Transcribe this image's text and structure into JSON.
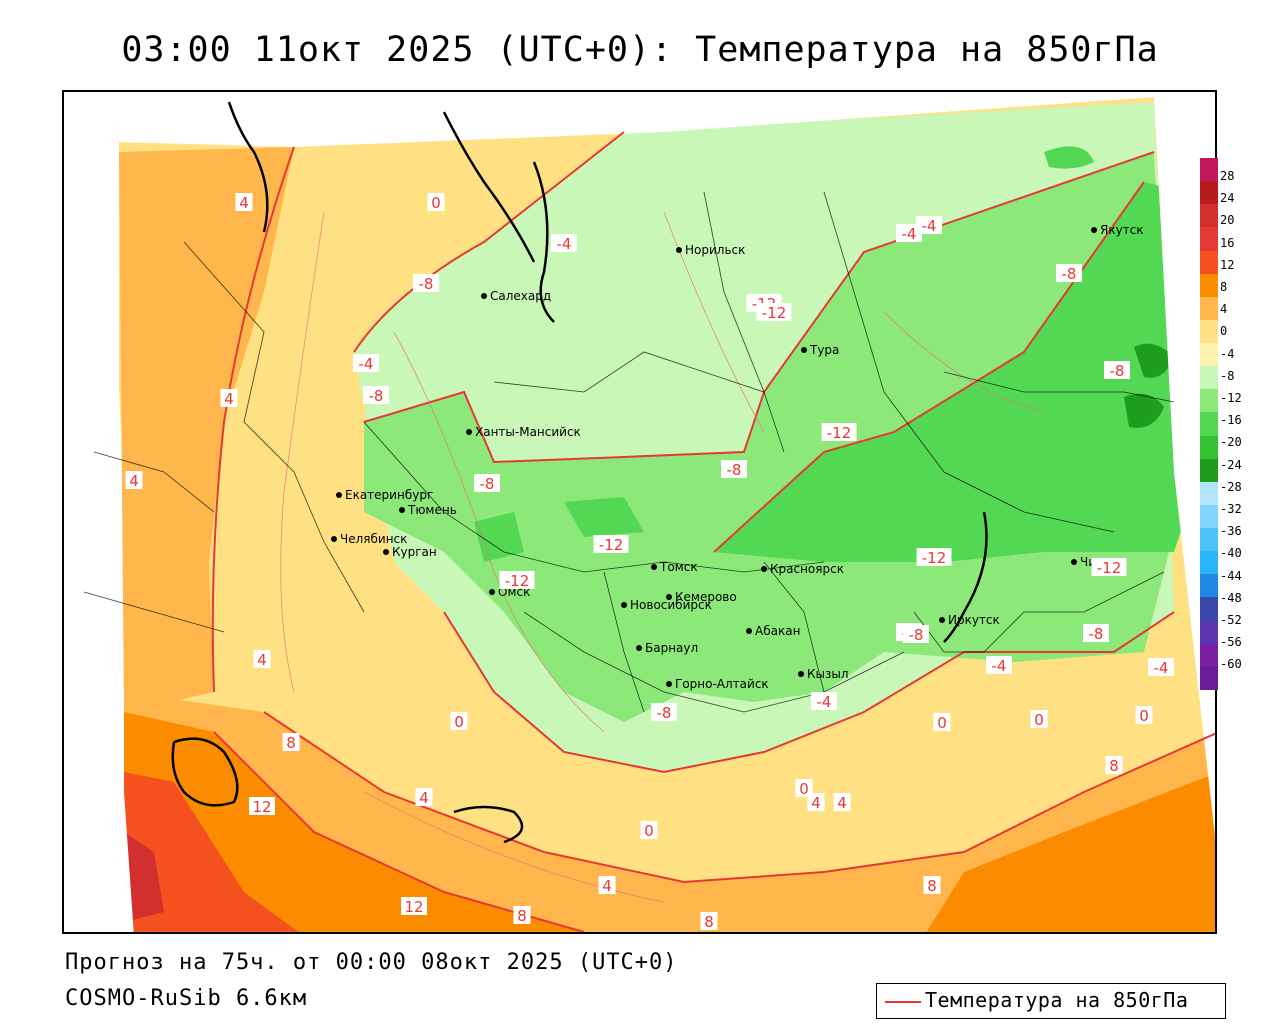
{
  "title": "03:00 11окт 2025 (UTC+0): Температура на 850гПа",
  "footer": {
    "forecast": "Прогноз на 75ч. от 00:00 08окт 2025 (UTC+0)",
    "model": "COSMO-RuSib 6.6км"
  },
  "legend": {
    "label": "Температура на 850гПа",
    "line_color": "#e53935"
  },
  "colorbar": {
    "ticks": [
      "28",
      "24",
      "20",
      "16",
      "12",
      "8",
      "4",
      "0",
      "-4",
      "-8",
      "-12",
      "-16",
      "-20",
      "-24",
      "-28",
      "-32",
      "-36",
      "-40",
      "-44",
      "-48",
      "-52",
      "-56",
      "-60"
    ],
    "colors": [
      "#c2185b",
      "#b71c1c",
      "#d32f2f",
      "#e53935",
      "#f4511e",
      "#fb8c00",
      "#ffb74d",
      "#ffe082",
      "#fff3b0",
      "#c8f7b8",
      "#8de87a",
      "#52d852",
      "#32c232",
      "#1e9c1e",
      "#b3e5fc",
      "#81d4fa",
      "#4fc3f7",
      "#29b6f6",
      "#1e88e5",
      "#3949ab",
      "#5e35b1",
      "#7b1fa2",
      "#6a1b9a"
    ]
  },
  "cities": [
    {
      "name": "Норильск"
    },
    {
      "name": "Якутск"
    },
    {
      "name": "Салехард"
    },
    {
      "name": "Тура"
    },
    {
      "name": "Ханты-Мансийск"
    },
    {
      "name": "Екатеринбург"
    },
    {
      "name": "Тюмень"
    },
    {
      "name": "Челябинск"
    },
    {
      "name": "Курган"
    },
    {
      "name": "Омск"
    },
    {
      "name": "Новосибирск"
    },
    {
      "name": "Томск"
    },
    {
      "name": "Кемерово"
    },
    {
      "name": "Красноярск"
    },
    {
      "name": "Абакан"
    },
    {
      "name": "Барнаул"
    },
    {
      "name": "Горно-Алтайск"
    },
    {
      "name": "Кызыл"
    },
    {
      "name": "Иркутск"
    },
    {
      "name": "Чита"
    }
  ],
  "isotherm_labels": [
    "4",
    "0",
    "-4",
    "-8",
    "-12",
    "-4",
    "-8",
    "-12",
    "-4",
    "-8",
    "4",
    "4",
    "-4",
    "-8",
    "-8",
    "-8",
    "-12",
    "-12",
    "-12",
    "-12",
    "-12",
    "-8",
    "-8",
    "-4",
    "-4",
    "4",
    "0",
    "0",
    "0",
    "0",
    "8",
    "12",
    "4",
    "0",
    "4",
    "4",
    "8",
    "0",
    "4",
    "8",
    "12",
    "8",
    "8",
    "-8",
    "-4",
    "-8"
  ]
}
